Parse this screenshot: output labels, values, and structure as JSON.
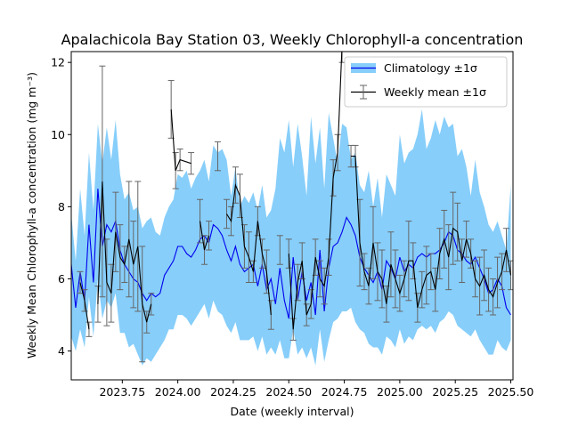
{
  "chart_data": {
    "type": "line",
    "title": "Apalachicola Bay Station 03, Weekly Chlorophyll-a concentration",
    "xlabel": "Date (weekly interval)",
    "ylabel": "Weekly Mean Chlorophyll-a concentration (mg m⁻³)",
    "xlim": [
      2023.52,
      2025.51
    ],
    "ylim": [
      3.2,
      12.3
    ],
    "xticks": [
      2023.75,
      2024.0,
      2024.25,
      2024.5,
      2024.75,
      2025.0,
      2025.25,
      2025.5
    ],
    "xtick_labels": [
      "2023.75",
      "2024.00",
      "2024.25",
      "2024.50",
      "2024.75",
      "2025.00",
      "2025.25",
      "2025.50"
    ],
    "yticks": [
      4,
      6,
      8,
      10,
      12
    ],
    "ytick_labels": [
      "4",
      "6",
      "8",
      "10",
      "12"
    ],
    "legend_position": "top-right",
    "legend": [
      {
        "label": "Climatology ±1σ",
        "kind": "band-line"
      },
      {
        "label": "Weekly mean ±1σ",
        "kind": "errorbar"
      }
    ],
    "colors": {
      "climatology_line": "#0000ee",
      "climatology_band": "#87cefa",
      "weekly_line": "#000000",
      "errorbar": "#666666",
      "axes": "#000000"
    },
    "series": [
      {
        "name": "Climatology ±1σ",
        "x": [
          2023.52,
          2023.54,
          2023.56,
          2023.58,
          2023.6,
          2023.62,
          2023.64,
          2023.66,
          2023.68,
          2023.7,
          2023.72,
          2023.74,
          2023.76,
          2023.78,
          2023.8,
          2023.82,
          2023.84,
          2023.86,
          2023.88,
          2023.9,
          2023.92,
          2023.94,
          2023.96,
          2023.98,
          2024.0,
          2024.02,
          2024.04,
          2024.06,
          2024.08,
          2024.1,
          2024.12,
          2024.14,
          2024.16,
          2024.18,
          2024.2,
          2024.22,
          2024.24,
          2024.26,
          2024.28,
          2024.3,
          2024.32,
          2024.34,
          2024.36,
          2024.38,
          2024.4,
          2024.42,
          2024.44,
          2024.46,
          2024.48,
          2024.5,
          2024.52,
          2024.54,
          2024.56,
          2024.58,
          2024.6,
          2024.62,
          2024.64,
          2024.66,
          2024.68,
          2024.7,
          2024.72,
          2024.74,
          2024.76,
          2024.78,
          2024.8,
          2024.82,
          2024.84,
          2024.86,
          2024.88,
          2024.9,
          2024.92,
          2024.94,
          2024.96,
          2024.98,
          2025.0,
          2025.02,
          2025.04,
          2025.06,
          2025.08,
          2025.1,
          2025.12,
          2025.14,
          2025.16,
          2025.18,
          2025.2,
          2025.22,
          2025.24,
          2025.26,
          2025.28,
          2025.3,
          2025.32,
          2025.34,
          2025.36,
          2025.38,
          2025.4,
          2025.42,
          2025.44,
          2025.46,
          2025.48,
          2025.5
        ],
        "values": [
          6.4,
          5.2,
          6.2,
          5.4,
          7.5,
          5.9,
          8.5,
          6.9,
          7.5,
          7.3,
          7.6,
          6.8,
          6.4,
          6.2,
          6.0,
          5.9,
          5.6,
          5.4,
          5.6,
          5.5,
          5.6,
          6.1,
          6.3,
          6.5,
          6.9,
          6.9,
          6.7,
          6.6,
          6.8,
          7.1,
          7.2,
          7.0,
          7.5,
          7.4,
          7.2,
          6.8,
          6.5,
          6.9,
          6.4,
          6.2,
          6.3,
          6.4,
          5.8,
          6.4,
          5.7,
          6.0,
          5.3,
          6.3,
          5.4,
          4.9,
          6.6,
          5.4,
          6.2,
          5.4,
          5.9,
          5.0,
          6.8,
          5.1,
          6.3,
          6.9,
          7.0,
          7.3,
          7.7,
          7.5,
          7.2,
          6.6,
          6.3,
          6.1,
          5.9,
          6.2,
          5.7,
          6.5,
          6.3,
          6.0,
          6.6,
          6.2,
          6.4,
          6.3,
          6.6,
          6.7,
          6.6,
          6.7,
          6.7,
          6.8,
          7.0,
          7.3,
          7.2,
          6.8,
          6.7,
          6.5,
          6.4,
          6.6,
          6.3,
          6.0,
          5.6,
          5.7,
          6.0,
          5.8,
          5.2,
          5.0
        ],
        "lower": [
          4.4,
          4.0,
          4.6,
          4.1,
          5.5,
          4.4,
          6.0,
          4.9,
          5.4,
          5.2,
          5.6,
          4.5,
          4.5,
          4.1,
          4.2,
          3.9,
          3.6,
          3.8,
          3.7,
          3.9,
          4.1,
          4.3,
          4.6,
          4.6,
          5.0,
          5.0,
          4.9,
          4.7,
          4.9,
          5.1,
          5.3,
          4.9,
          5.4,
          5.1,
          5.0,
          4.7,
          4.5,
          4.8,
          4.3,
          4.3,
          4.3,
          4.4,
          4.0,
          4.4,
          3.9,
          4.1,
          3.9,
          4.3,
          3.8,
          3.8,
          4.6,
          3.9,
          4.1,
          3.8,
          4.1,
          3.6,
          4.6,
          3.7,
          4.3,
          4.8,
          4.9,
          5.1,
          5.1,
          5.2,
          4.8,
          4.6,
          4.5,
          4.2,
          4.1,
          4.1,
          3.9,
          4.4,
          4.3,
          4.1,
          4.6,
          4.2,
          4.4,
          4.3,
          4.6,
          4.7,
          4.6,
          4.7,
          4.5,
          4.8,
          4.9,
          5.1,
          5.0,
          4.7,
          4.6,
          4.5,
          4.4,
          4.6,
          4.3,
          4.1,
          3.9,
          3.9,
          4.3,
          4.1,
          4.0,
          4.3
        ],
        "upper": [
          7.8,
          6.5,
          8.5,
          7.2,
          9.5,
          7.9,
          10.3,
          9.2,
          10.2,
          9.3,
          10.4,
          8.9,
          8.2,
          8.4,
          7.9,
          8.0,
          7.4,
          7.6,
          7.7,
          7.3,
          7.2,
          7.7,
          8.0,
          8.2,
          8.9,
          8.8,
          9.0,
          8.5,
          8.8,
          9.0,
          9.3,
          8.7,
          9.7,
          9.5,
          9.6,
          9.3,
          8.3,
          9.1,
          8.0,
          8.3,
          8.1,
          8.4,
          7.9,
          8.6,
          7.7,
          7.9,
          8.5,
          9.9,
          9.5,
          10.4,
          9.1,
          10.3,
          9.4,
          8.3,
          10.5,
          9.2,
          10.2,
          8.5,
          10.6,
          9.9,
          9.2,
          10.3,
          10.2,
          9.3,
          9.5,
          8.6,
          8.4,
          9.0,
          8.0,
          8.8,
          7.7,
          8.9,
          8.6,
          8.3,
          10.0,
          9.2,
          9.5,
          9.6,
          10.0,
          10.7,
          9.6,
          9.9,
          10.4,
          10.0,
          10.5,
          10.2,
          10.3,
          9.4,
          9.6,
          9.1,
          8.3,
          9.3,
          8.4,
          8.0,
          7.5,
          7.3,
          7.6,
          7.2,
          6.8,
          8.6
        ]
      },
      {
        "name": "Weekly mean ±1σ",
        "x": [
          2023.56,
          2023.58,
          2023.6,
          2023.62,
          2023.64,
          2023.66,
          2023.68,
          2023.7,
          2023.72,
          2023.74,
          2023.76,
          2023.78,
          2023.8,
          2023.82,
          2023.84,
          2023.86,
          2023.88,
          2023.95,
          2023.97,
          2023.99,
          2024.01,
          2024.06,
          2024.08,
          2024.1,
          2024.12,
          2024.14,
          2024.16,
          2024.18,
          2024.2,
          2024.22,
          2024.24,
          2024.26,
          2024.28,
          2024.3,
          2024.32,
          2024.34,
          2024.36,
          2024.38,
          2024.4,
          2024.42,
          2024.44,
          2024.46,
          2024.48,
          2024.5,
          2024.52,
          2024.54,
          2024.56,
          2024.58,
          2024.6,
          2024.62,
          2024.64,
          2024.66,
          2024.68,
          2024.7,
          2024.72,
          2024.74,
          2024.76,
          2024.78,
          2024.8,
          2024.82,
          2024.84,
          2024.86,
          2024.88,
          2024.9,
          2024.92,
          2024.94,
          2024.96,
          2024.98,
          2025.0,
          2025.02,
          2025.04,
          2025.06,
          2025.08,
          2025.1,
          2025.12,
          2025.14,
          2025.16,
          2025.18,
          2025.2,
          2025.22,
          2025.24,
          2025.26,
          2025.28,
          2025.3,
          2025.32,
          2025.34,
          2025.36,
          2025.38,
          2025.4,
          2025.42,
          2025.44,
          2025.46,
          2025.48,
          2025.5
        ],
        "values": [
          5.9,
          5.4,
          4.6,
          null,
          5.3,
          8.7,
          5.9,
          5.6,
          7.3,
          6.6,
          6.4,
          7.1,
          6.4,
          6.9,
          5.3,
          4.8,
          5.3,
          null,
          10.7,
          9.0,
          9.3,
          9.2,
          null,
          7.6,
          6.8,
          7.2,
          null,
          9.4,
          null,
          7.8,
          7.6,
          8.6,
          8.3,
          6.9,
          6.6,
          6.2,
          7.6,
          6.7,
          6.2,
          5.0,
          null,
          6.8,
          null,
          6.7,
          4.6,
          5.9,
          6.5,
          5.0,
          5.3,
          6.6,
          6.0,
          5.8,
          6.6,
          8.8,
          9.5,
          12.5,
          null,
          9.4,
          9.4,
          7.0,
          6.2,
          5.8,
          7.0,
          6.2,
          6.0,
          5.3,
          6.4,
          6.0,
          5.6,
          6.0,
          6.5,
          6.5,
          5.2,
          5.7,
          6.1,
          6.2,
          5.7,
          6.7,
          7.1,
          6.6,
          7.4,
          7.3,
          6.5,
          7.1,
          6.7,
          6.0,
          5.8,
          6.1,
          5.7,
          5.5,
          5.9,
          6.2,
          6.8,
          6.1
        ],
        "errors": [
          0.3,
          0.3,
          0.2,
          null,
          0.5,
          3.2,
          1.2,
          0.8,
          1.1,
          0.9,
          0.5,
          1.6,
          1.2,
          1.8,
          1.6,
          0.3,
          0.3,
          null,
          0.8,
          0.5,
          0.3,
          0.3,
          null,
          0.6,
          0.4,
          0.4,
          null,
          0.4,
          null,
          0.4,
          0.4,
          0.5,
          0.6,
          0.6,
          0.7,
          0.3,
          0.4,
          0.4,
          0.6,
          0.4,
          null,
          0.4,
          null,
          0.4,
          0.3,
          0.5,
          0.5,
          0.3,
          0.4,
          0.5,
          0.5,
          0.5,
          0.5,
          0.5,
          0.5,
          0.5,
          null,
          0.3,
          0.3,
          1.2,
          0.5,
          0.5,
          1.0,
          0.8,
          0.8,
          0.5,
          0.9,
          0.8,
          0.5,
          0.5,
          1.1,
          0.5,
          0.4,
          0.5,
          0.8,
          0.5,
          0.6,
          0.7,
          0.8,
          0.9,
          1.0,
          0.8,
          0.6,
          0.5,
          0.4,
          0.5,
          0.8,
          0.7,
          0.6,
          0.5,
          0.7,
          0.5,
          0.6,
          0.4
        ]
      }
    ]
  }
}
